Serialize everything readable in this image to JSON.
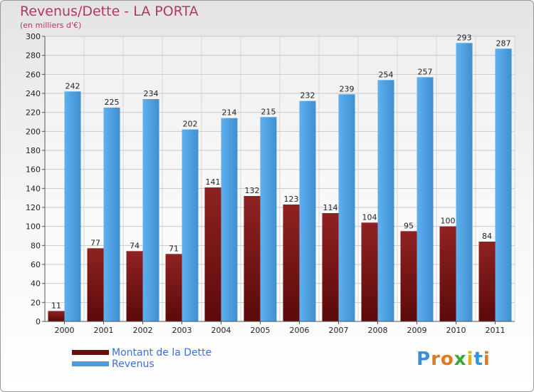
{
  "title": "Revenus/Dette - LA PORTA",
  "subtitle": "(en milliers d'€)",
  "colors": {
    "dette": "#7e1717",
    "revenus": "#4a9de0",
    "title": "#b03a5b",
    "legend_text": "#3f6fd8"
  },
  "chart_data": {
    "type": "bar",
    "title": "Revenus/Dette - LA PORTA",
    "subtitle": "(en milliers d'€)",
    "categories": [
      "2000",
      "2001",
      "2002",
      "2003",
      "2004",
      "2005",
      "2006",
      "2007",
      "2008",
      "2009",
      "2010",
      "2011"
    ],
    "series": [
      {
        "name": "Montant de la Dette",
        "color": "#7e1717",
        "values": [
          11,
          77,
          74,
          71,
          141,
          132,
          123,
          114,
          104,
          95,
          100,
          84
        ]
      },
      {
        "name": "Revenus",
        "color": "#4a9de0",
        "values": [
          242,
          225,
          234,
          202,
          214,
          215,
          232,
          239,
          254,
          257,
          293,
          287
        ]
      }
    ],
    "ylim": [
      0,
      300
    ],
    "yticks": [
      0,
      20,
      40,
      60,
      80,
      100,
      120,
      140,
      160,
      180,
      200,
      220,
      240,
      260,
      280,
      300
    ],
    "grid": true,
    "legend_position": "bottom-left"
  },
  "legend": [
    {
      "label": "Montant de la Dette",
      "color": "#7e1717"
    },
    {
      "label": "Revenus",
      "color": "#4a9de0"
    }
  ],
  "brand": {
    "letters": [
      "P",
      "r",
      "o",
      "x",
      "i",
      "t",
      "i"
    ],
    "colors": [
      "#3a8fd8",
      "#e07a20",
      "#e07a20",
      "#3aa83a",
      "#e0b020",
      "#3a8fd8",
      "#e07a20"
    ]
  }
}
